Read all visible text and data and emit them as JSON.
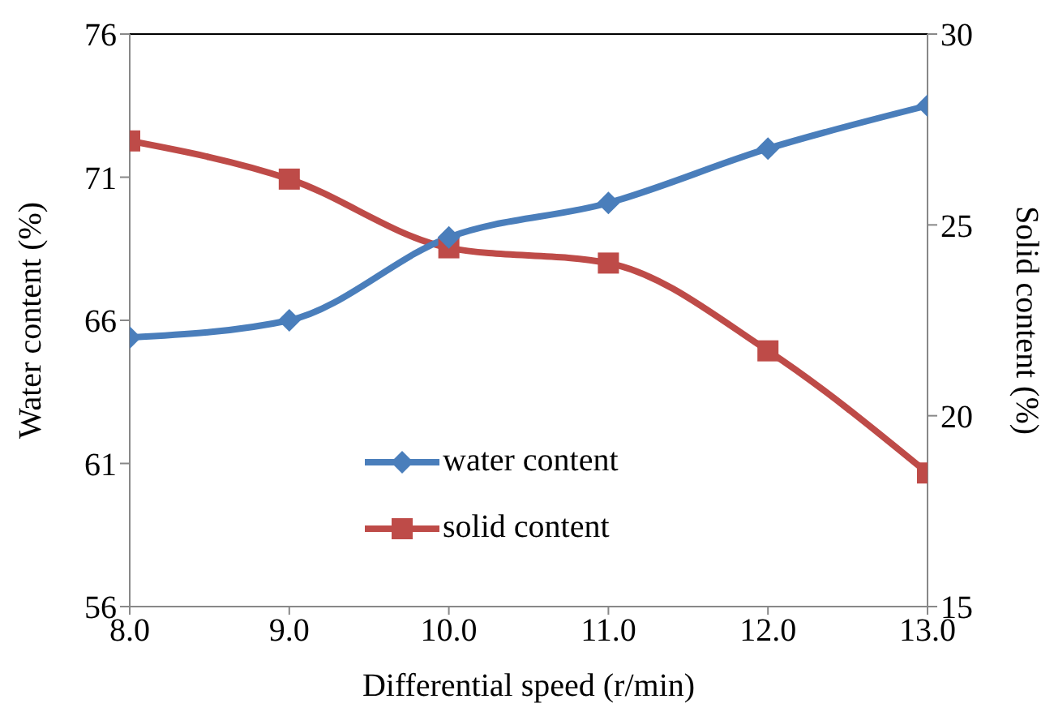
{
  "chart_data": {
    "type": "line",
    "xlabel": "Differential speed  (r/min)",
    "ylabel": "Water content (%)",
    "y2label": "Solid content (%)",
    "x": [
      8,
      9,
      10,
      11,
      12,
      13
    ],
    "xlim": [
      8,
      13
    ],
    "xticks": [
      {
        "value": 8,
        "label": "8.0"
      },
      {
        "value": 9,
        "label": "9.0"
      },
      {
        "value": 10,
        "label": "10.0"
      },
      {
        "value": 11,
        "label": "11.0"
      },
      {
        "value": 12,
        "label": "12.0"
      },
      {
        "value": 13,
        "label": "13.0"
      }
    ],
    "ylim": [
      56,
      76
    ],
    "yticks": [
      56,
      61,
      66,
      71,
      76
    ],
    "y2lim": [
      15,
      30
    ],
    "y2ticks": [
      15,
      20,
      25,
      30
    ],
    "series": [
      {
        "name": "water content",
        "color": "#4a7ebb",
        "marker": "diamond",
        "values": [
          65.4,
          66.0,
          68.9,
          70.1,
          72.0,
          73.5
        ]
      },
      {
        "name": "solid content",
        "color": "#be4b48",
        "marker": "square",
        "axis": "y2",
        "values": [
          27.2,
          26.2,
          24.4,
          24.0,
          21.7,
          18.5
        ]
      }
    ],
    "grid": false,
    "legend": "bottom"
  }
}
